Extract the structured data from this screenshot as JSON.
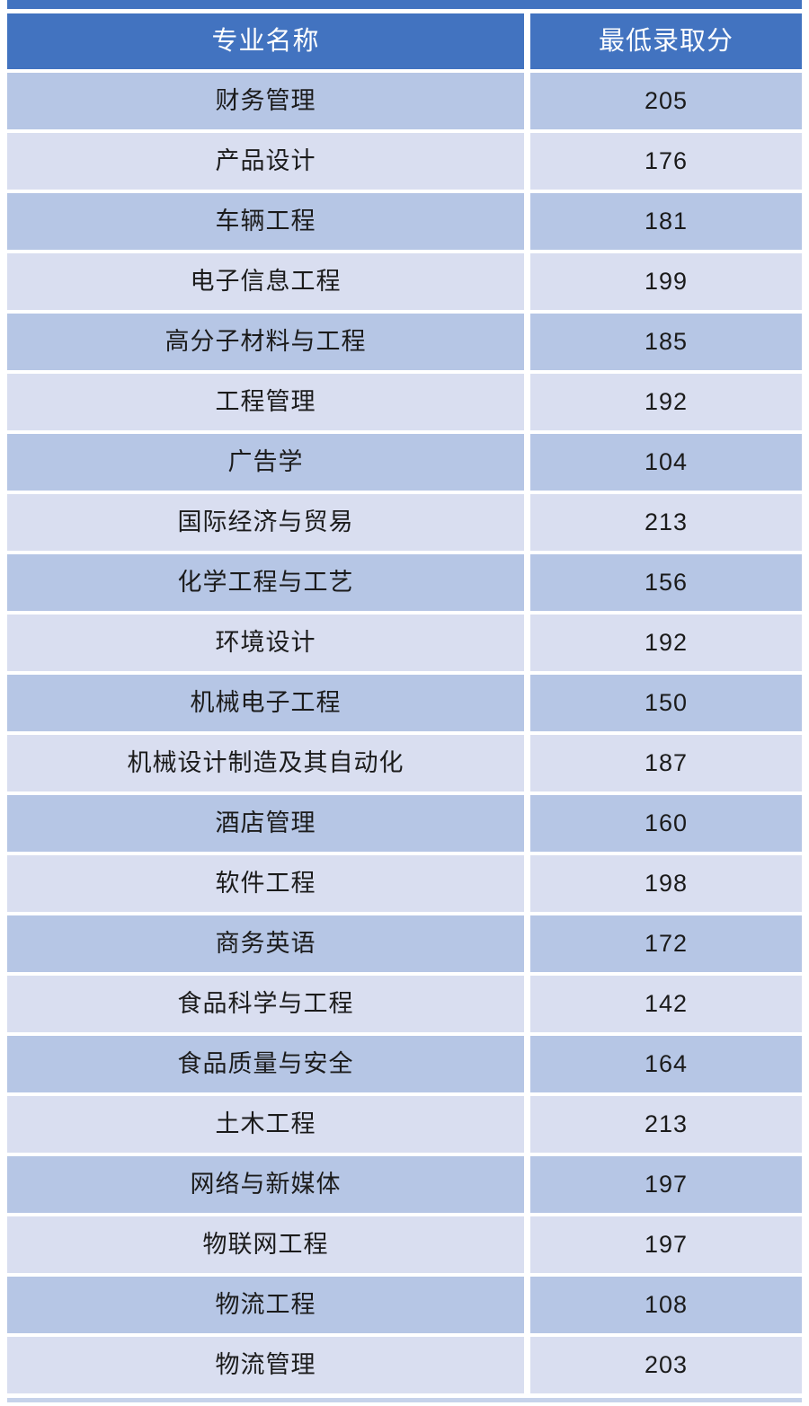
{
  "table": {
    "columns": [
      {
        "label": "专业名称"
      },
      {
        "label": "最低录取分"
      }
    ],
    "rows": [
      {
        "major": "财务管理",
        "score": "205"
      },
      {
        "major": "产品设计",
        "score": "176"
      },
      {
        "major": "车辆工程",
        "score": "181"
      },
      {
        "major": "电子信息工程",
        "score": "199"
      },
      {
        "major": "高分子材料与工程",
        "score": "185"
      },
      {
        "major": "工程管理",
        "score": "192"
      },
      {
        "major": "广告学",
        "score": "104"
      },
      {
        "major": "国际经济与贸易",
        "score": "213"
      },
      {
        "major": "化学工程与工艺",
        "score": "156"
      },
      {
        "major": "环境设计",
        "score": "192"
      },
      {
        "major": "机械电子工程",
        "score": "150"
      },
      {
        "major": "机械设计制造及其自动化",
        "score": "187"
      },
      {
        "major": "酒店管理",
        "score": "160"
      },
      {
        "major": "软件工程",
        "score": "198"
      },
      {
        "major": "商务英语",
        "score": "172"
      },
      {
        "major": "食品科学与工程",
        "score": "142"
      },
      {
        "major": "食品质量与安全",
        "score": "164"
      },
      {
        "major": "土木工程",
        "score": "213"
      },
      {
        "major": "网络与新媒体",
        "score": "197"
      },
      {
        "major": "物联网工程",
        "score": "197"
      },
      {
        "major": "物流工程",
        "score": "108"
      },
      {
        "major": "物流管理",
        "score": "203"
      }
    ]
  },
  "colors": {
    "header_bg": "#4273C0",
    "row_dark": "#B6C6E5",
    "row_light": "#D9DEF0",
    "bottom_strip": "#C6D2EA",
    "header_text": "#FFFFFF",
    "body_text": "#1B1B1B"
  }
}
